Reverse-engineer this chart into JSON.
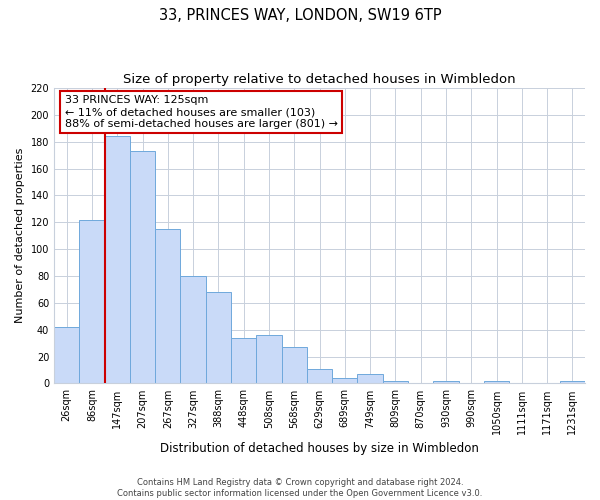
{
  "title": "33, PRINCES WAY, LONDON, SW19 6TP",
  "subtitle": "Size of property relative to detached houses in Wimbledon",
  "xlabel": "Distribution of detached houses by size in Wimbledon",
  "ylabel": "Number of detached properties",
  "bar_labels": [
    "26sqm",
    "86sqm",
    "147sqm",
    "207sqm",
    "267sqm",
    "327sqm",
    "388sqm",
    "448sqm",
    "508sqm",
    "568sqm",
    "629sqm",
    "689sqm",
    "749sqm",
    "809sqm",
    "870sqm",
    "930sqm",
    "990sqm",
    "1050sqm",
    "1111sqm",
    "1171sqm",
    "1231sqm"
  ],
  "bar_values": [
    42,
    122,
    184,
    173,
    115,
    80,
    68,
    34,
    36,
    27,
    11,
    4,
    7,
    2,
    0,
    2,
    0,
    2,
    0,
    0,
    2
  ],
  "bar_color": "#c9daf8",
  "bar_edge_color": "#6fa8dc",
  "vline_index": 2,
  "vline_color": "#cc0000",
  "ylim": [
    0,
    220
  ],
  "yticks": [
    0,
    20,
    40,
    60,
    80,
    100,
    120,
    140,
    160,
    180,
    200,
    220
  ],
  "annotation_title": "33 PRINCES WAY: 125sqm",
  "annotation_line1": "← 11% of detached houses are smaller (103)",
  "annotation_line2": "88% of semi-detached houses are larger (801) →",
  "annotation_box_color": "#ffffff",
  "annotation_box_edge": "#cc0000",
  "footer_line1": "Contains HM Land Registry data © Crown copyright and database right 2024.",
  "footer_line2": "Contains public sector information licensed under the Open Government Licence v3.0.",
  "bg_color": "#ffffff",
  "grid_color": "#c8d0dc",
  "title_fontsize": 10.5,
  "subtitle_fontsize": 9.5,
  "ylabel_fontsize": 8,
  "xlabel_fontsize": 8.5,
  "tick_fontsize": 7,
  "ann_fontsize": 8,
  "footer_fontsize": 6
}
